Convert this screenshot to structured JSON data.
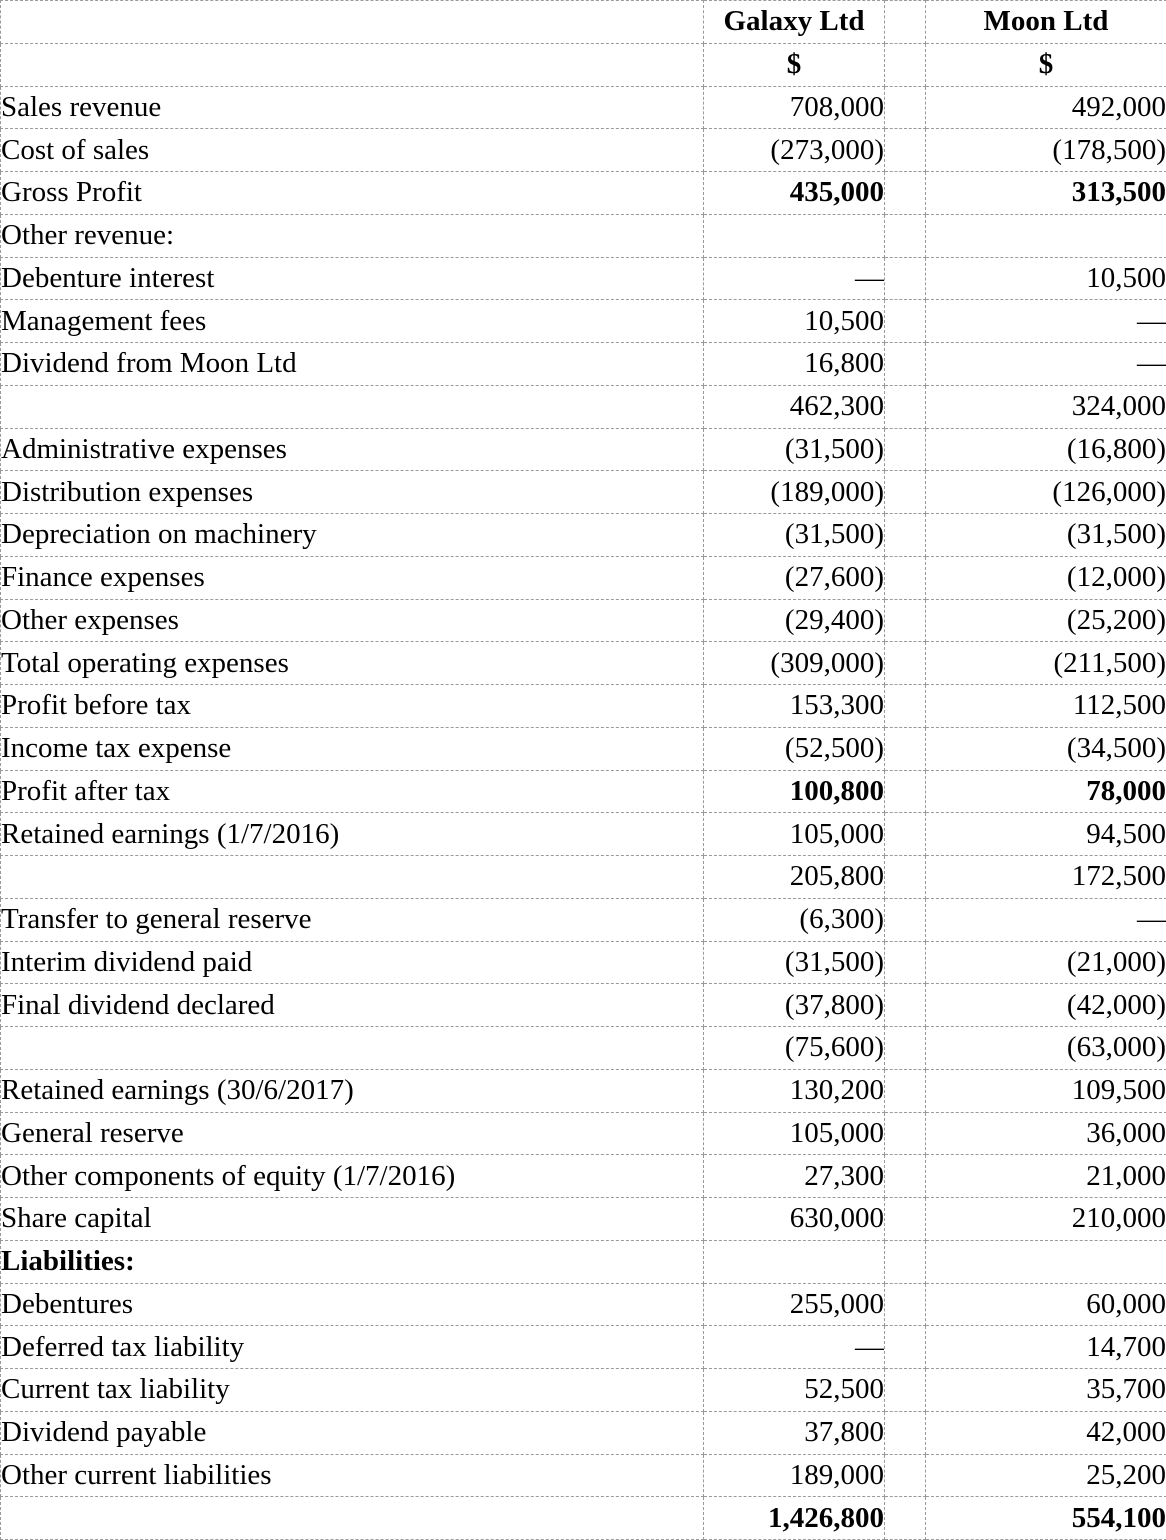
{
  "table": {
    "header": {
      "company1": "Galaxy Ltd",
      "company2": "Moon Ltd",
      "currency": "$"
    },
    "rows": [
      {
        "label": "Sales revenue",
        "galaxy": "708,000",
        "moon": "492,000",
        "solid_top": true
      },
      {
        "label": "Cost of sales",
        "galaxy": "(273,000)",
        "moon": "(178,500)"
      },
      {
        "label": "Gross Profit",
        "galaxy": "435,000",
        "moon": "313,500",
        "bold_values": true,
        "solid_top": true
      },
      {
        "label": "Other revenue:",
        "galaxy": "",
        "moon": ""
      },
      {
        "label": "Debenture interest",
        "galaxy": "—",
        "moon": "10,500"
      },
      {
        "label": "Management fees",
        "galaxy": "10,500",
        "moon": "—"
      },
      {
        "label": "Dividend from Moon Ltd",
        "galaxy": "16,800",
        "moon": "—"
      },
      {
        "label": "",
        "galaxy": "462,300",
        "moon": "324,000",
        "solid_top": true
      },
      {
        "label": "Administrative expenses",
        "galaxy": "(31,500)",
        "moon": "(16,800)"
      },
      {
        "label": "Distribution expenses",
        "galaxy": "(189,000)",
        "moon": "(126,000)"
      },
      {
        "label": "Depreciation on machinery",
        "galaxy": "(31,500)",
        "moon": "(31,500)"
      },
      {
        "label": "Finance expenses",
        "galaxy": "(27,600)",
        "moon": "(12,000)"
      },
      {
        "label": "Other expenses",
        "galaxy": "(29,400)",
        "moon": "(25,200)"
      },
      {
        "label": "Total operating expenses",
        "galaxy": "(309,000)",
        "moon": "(211,500)",
        "solid_top": true
      },
      {
        "label": "Profit before tax",
        "galaxy": "153,300",
        "moon": "112,500",
        "solid_top": true
      },
      {
        "label": "Income tax expense",
        "galaxy": "(52,500)",
        "moon": "(34,500)"
      },
      {
        "label": "Profit after tax",
        "galaxy": "100,800",
        "moon": "78,000",
        "bold_values": true,
        "solid_top": true
      },
      {
        "label": "Retained earnings (1/7/2016)",
        "galaxy": "105,000",
        "moon": "94,500"
      },
      {
        "label": "",
        "galaxy": "205,800",
        "moon": "172,500",
        "solid_top": true
      },
      {
        "label": "Transfer to general reserve",
        "galaxy": "(6,300)",
        "moon": "—"
      },
      {
        "label": "Interim dividend paid",
        "galaxy": "(31,500)",
        "moon": "(21,000)"
      },
      {
        "label": "Final dividend declared",
        "galaxy": "(37,800)",
        "moon": "(42,000)"
      },
      {
        "label": "",
        "galaxy": "(75,600)",
        "moon": "(63,000)",
        "solid_top": true
      },
      {
        "label": "Retained earnings (30/6/2017)",
        "galaxy": "130,200",
        "moon": "109,500",
        "solid_top": true
      },
      {
        "label": "General reserve",
        "galaxy": "105,000",
        "moon": "36,000"
      },
      {
        "label": "Other components of equity (1/7/2016)",
        "galaxy": "27,300",
        "moon": "21,000"
      },
      {
        "label": "Share capital",
        "galaxy": "630,000",
        "moon": "210,000"
      },
      {
        "label": "Liabilities:",
        "galaxy": "",
        "moon": "",
        "bold_label": true
      },
      {
        "label": "Debentures",
        "galaxy": "255,000",
        "moon": "60,000"
      },
      {
        "label": "Deferred tax liability",
        "galaxy": "—",
        "moon": "14,700"
      },
      {
        "label": "Current tax liability",
        "galaxy": "52,500",
        "moon": "35,700"
      },
      {
        "label": "Dividend payable",
        "galaxy": "37,800",
        "moon": "42,000"
      },
      {
        "label": "Other current liabilities",
        "galaxy": "189,000",
        "moon": "25,200"
      },
      {
        "label": "",
        "galaxy": "1,426,800",
        "moon": "554,100",
        "bold_values": true,
        "solid_top": true,
        "solid_bottom": true
      }
    ]
  },
  "colors": {
    "dashed_border": "#9a9a9a",
    "solid_rule": "#000000",
    "text": "#000000",
    "background": "#ffffff"
  }
}
